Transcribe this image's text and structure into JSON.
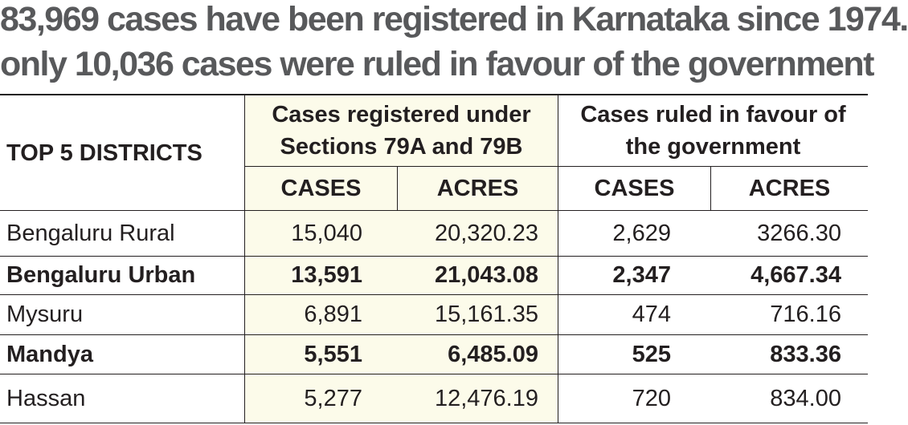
{
  "headline": {
    "line1": "83,969 cases have been registered in Karnataka since 1974.",
    "line2": "only 10,036 cases were ruled in favour of the government"
  },
  "table": {
    "corner_label": "TOP 5 DISTRICTS",
    "group_registered": "Cases registered under Sections 79A and 79B",
    "group_ruled": "Cases ruled in favour of the government",
    "sub_cases_1": "CASES",
    "sub_acres_1": "ACRES",
    "sub_cases_2": "CASES",
    "sub_acres_2": "ACRES",
    "shade_color": "#fcfbea"
  },
  "chart_data": {
    "type": "table",
    "title": "83,969 cases have been registered in Karnataka since 1974. only 10,036 cases were ruled in favour of the government",
    "columns": [
      "TOP 5 DISTRICTS",
      "CASES",
      "ACRES",
      "CASES",
      "ACRES"
    ],
    "column_groups": [
      {
        "name": "Cases registered under Sections 79A and 79B",
        "columns": [
          "CASES",
          "ACRES"
        ]
      },
      {
        "name": "Cases ruled in favour of the government",
        "columns": [
          "CASES",
          "ACRES"
        ]
      }
    ],
    "rows": [
      {
        "district": "Bengaluru Rural",
        "reg_cases": "15,040",
        "reg_acres": "20,320.23",
        "ruled_cases": "2,629",
        "ruled_acres": "3266.30",
        "bold": false
      },
      {
        "district": "Bengaluru Urban",
        "reg_cases": "13,591",
        "reg_acres": "21,043.08",
        "ruled_cases": "2,347",
        "ruled_acres": "4,667.34",
        "bold": true
      },
      {
        "district": "Mysuru",
        "reg_cases": "6,891",
        "reg_acres": "15,161.35",
        "ruled_cases": "474",
        "ruled_acres": "716.16",
        "bold": false
      },
      {
        "district": "Mandya",
        "reg_cases": "5,551",
        "reg_acres": "6,485.09",
        "ruled_cases": "525",
        "ruled_acres": "833.36",
        "bold": true
      },
      {
        "district": "Hassan",
        "reg_cases": "5,277",
        "reg_acres": "12,476.19",
        "ruled_cases": "720",
        "ruled_acres": "834.00",
        "bold": false
      }
    ]
  }
}
